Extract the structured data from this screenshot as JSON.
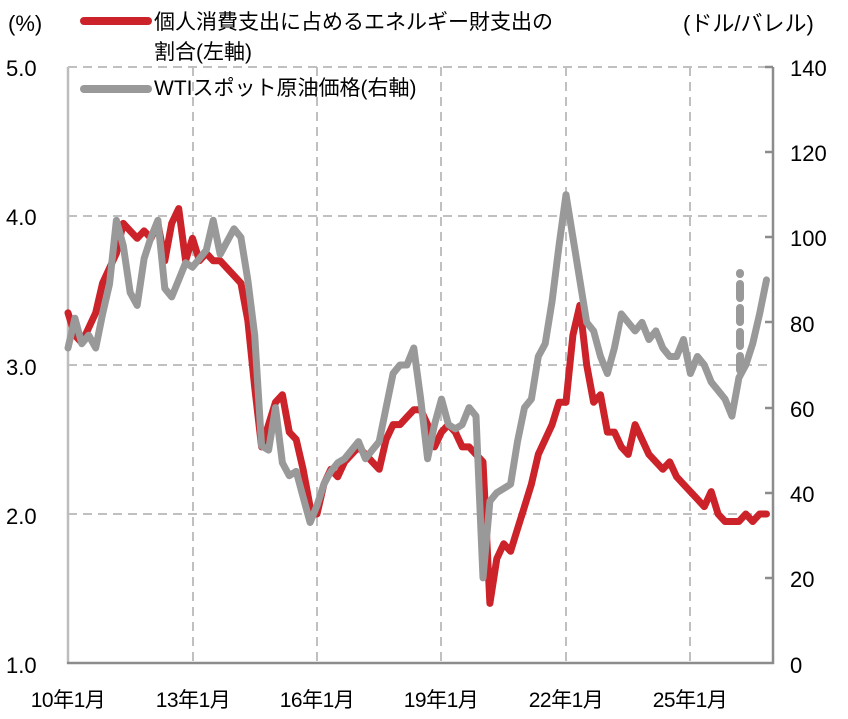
{
  "chart_data": {
    "type": "line",
    "title": "",
    "left_axis": {
      "unit_label": "(%)",
      "ticks": [
        "5.0",
        "4.0",
        "3.0",
        "2.0",
        "1.0"
      ],
      "ylim": [
        1.0,
        5.0
      ]
    },
    "right_axis": {
      "unit_label": "(ドル/バレル)",
      "ticks": [
        "140",
        "120",
        "100",
        "80",
        "60",
        "40",
        "20",
        "0"
      ],
      "ylim": [
        0,
        140
      ]
    },
    "x_tick_labels": [
      "10年1月",
      "13年1月",
      "16年1月",
      "19年1月",
      "22年1月",
      "25年1月"
    ],
    "grid": "dashed",
    "legend": [
      {
        "name": "個人消費支出に占めるエネルギー財支出の割合(左軸)",
        "line1": "個人消費支出に占めるエネルギー財支出の",
        "line2": "割合(左軸)",
        "color": "#cc2229"
      },
      {
        "name": "WTIスポット原油価格(右軸)",
        "line1": "WTIスポット原油価格(右軸)",
        "color": "#999999"
      }
    ],
    "x_months_from_2010_01": [
      0,
      2,
      4,
      6,
      8,
      10,
      12,
      14,
      16,
      18,
      20,
      22,
      24,
      26,
      28,
      30,
      32,
      34,
      36,
      38,
      40,
      42,
      44,
      46,
      48,
      50,
      52,
      54,
      56,
      58,
      60,
      62,
      64,
      66,
      68,
      70,
      72,
      74,
      76,
      78,
      80,
      82,
      84,
      86,
      88,
      90,
      92,
      94,
      96,
      98,
      100,
      102,
      104,
      106,
      108,
      110,
      112,
      114,
      116,
      118,
      120,
      122,
      124,
      126,
      128,
      130,
      132,
      134,
      136,
      138,
      140,
      142,
      144,
      146,
      148,
      150,
      152,
      154,
      156,
      158,
      160,
      162,
      164,
      166,
      168,
      170,
      172,
      174,
      176,
      178,
      180,
      182,
      184,
      186,
      188,
      190,
      192,
      194,
      196,
      198,
      200,
      202,
      204,
      206
    ],
    "series": [
      {
        "name": "個人消費支出に占めるエネルギー財支出の割合(左軸)",
        "axis": "left",
        "values": [
          3.35,
          3.2,
          3.15,
          3.25,
          3.35,
          3.55,
          3.65,
          3.75,
          3.95,
          3.9,
          3.85,
          3.9,
          3.85,
          3.95,
          3.7,
          3.95,
          4.05,
          3.7,
          3.85,
          3.7,
          3.75,
          3.7,
          3.7,
          3.65,
          3.6,
          3.55,
          3.3,
          2.85,
          2.45,
          2.6,
          2.75,
          2.8,
          2.55,
          2.5,
          2.3,
          2.05,
          2.0,
          2.2,
          2.3,
          2.25,
          2.35,
          2.4,
          2.45,
          2.4,
          2.35,
          2.3,
          2.5,
          2.6,
          2.6,
          2.65,
          2.7,
          2.7,
          2.6,
          2.45,
          2.55,
          2.6,
          2.55,
          2.45,
          2.45,
          2.4,
          2.35,
          1.4,
          1.7,
          1.8,
          1.75,
          1.9,
          2.05,
          2.2,
          2.4,
          2.5,
          2.6,
          2.75,
          2.75,
          3.2,
          3.4,
          3.0,
          2.75,
          2.8,
          2.55,
          2.55,
          2.45,
          2.4,
          2.6,
          2.5,
          2.4,
          2.35,
          2.3,
          2.35,
          2.25,
          2.2,
          2.15,
          2.1,
          2.05,
          2.15,
          2.0,
          1.95,
          1.95,
          1.95,
          2.0,
          1.95,
          2.0,
          2.0,
          null,
          null
        ]
      },
      {
        "name": "WTIスポット原油価格(右軸)",
        "axis": "right",
        "values": [
          74,
          81,
          75,
          77,
          74,
          82,
          89,
          104,
          98,
          87,
          84,
          95,
          100,
          104,
          88,
          86,
          90,
          94,
          93,
          95,
          97,
          104,
          96,
          99,
          102,
          100,
          90,
          77,
          51,
          50,
          60,
          47,
          44,
          45,
          39,
          33,
          37,
          42,
          45,
          47,
          48,
          50,
          52,
          48,
          50,
          52,
          60,
          68,
          70,
          70,
          74,
          62,
          48,
          56,
          62,
          56,
          55,
          56,
          60,
          58,
          20,
          38,
          40,
          41,
          42,
          52,
          60,
          62,
          72,
          75,
          85,
          98,
          110,
          100,
          90,
          80,
          78,
          72,
          68,
          74,
          82,
          80,
          78,
          80,
          76,
          78,
          74,
          72,
          72,
          76,
          68,
          72,
          70,
          66,
          64,
          62,
          58,
          67,
          70,
          75,
          82,
          90,
          null,
          null
        ]
      }
    ],
    "last_points_note": "WTI final segment drawn dashed, approx 67 to 90 (ドル/バレル)"
  }
}
